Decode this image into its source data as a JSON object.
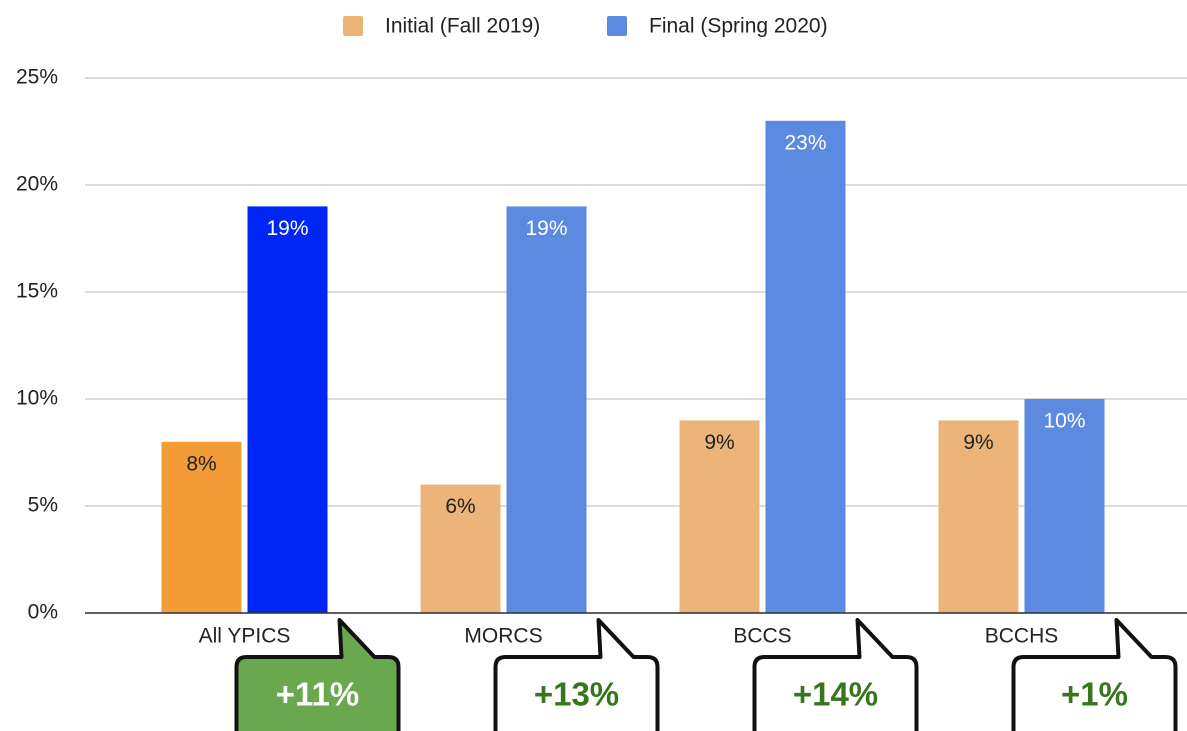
{
  "chart_data": {
    "type": "bar",
    "categories": [
      "All YPICS",
      "MORCS",
      "BCCS",
      "BCCHS"
    ],
    "series": [
      {
        "name": "Initial (Fall 2019)",
        "color": "#ecb479",
        "colors": [
          "#f29d38",
          "#ecb479",
          "#ecb479",
          "#ecb479"
        ],
        "values": [
          8,
          6,
          9,
          9
        ],
        "value_labels": [
          "8%",
          "6%",
          "9%",
          "9%"
        ]
      },
      {
        "name": "Final (Spring 2020)",
        "color": "#5b8ae0",
        "colors": [
          "#0026f5",
          "#5b8ae0",
          "#5b8ae0",
          "#5b8ae0"
        ],
        "values": [
          19,
          19,
          23,
          10
        ],
        "value_labels": [
          "19%",
          "19%",
          "23%",
          "10%"
        ]
      }
    ],
    "ylim": [
      0,
      25
    ],
    "yticks": [
      {
        "value": 0,
        "label": "0%"
      },
      {
        "value": 5,
        "label": "5%"
      },
      {
        "value": 10,
        "label": "10%"
      },
      {
        "value": 15,
        "label": "15%"
      },
      {
        "value": 20,
        "label": "20%"
      },
      {
        "value": 25,
        "label": "25%"
      }
    ],
    "grid": true,
    "legend": "top",
    "annotations": [
      "+11%",
      "+13%",
      "+14%",
      "+1%"
    ],
    "annotation_fills": [
      "#6aa84f",
      "#ffffff",
      "#ffffff",
      "#ffffff"
    ],
    "annotation_text_colors": [
      "#ffffff",
      "#38761d",
      "#38761d",
      "#38761d"
    ]
  }
}
